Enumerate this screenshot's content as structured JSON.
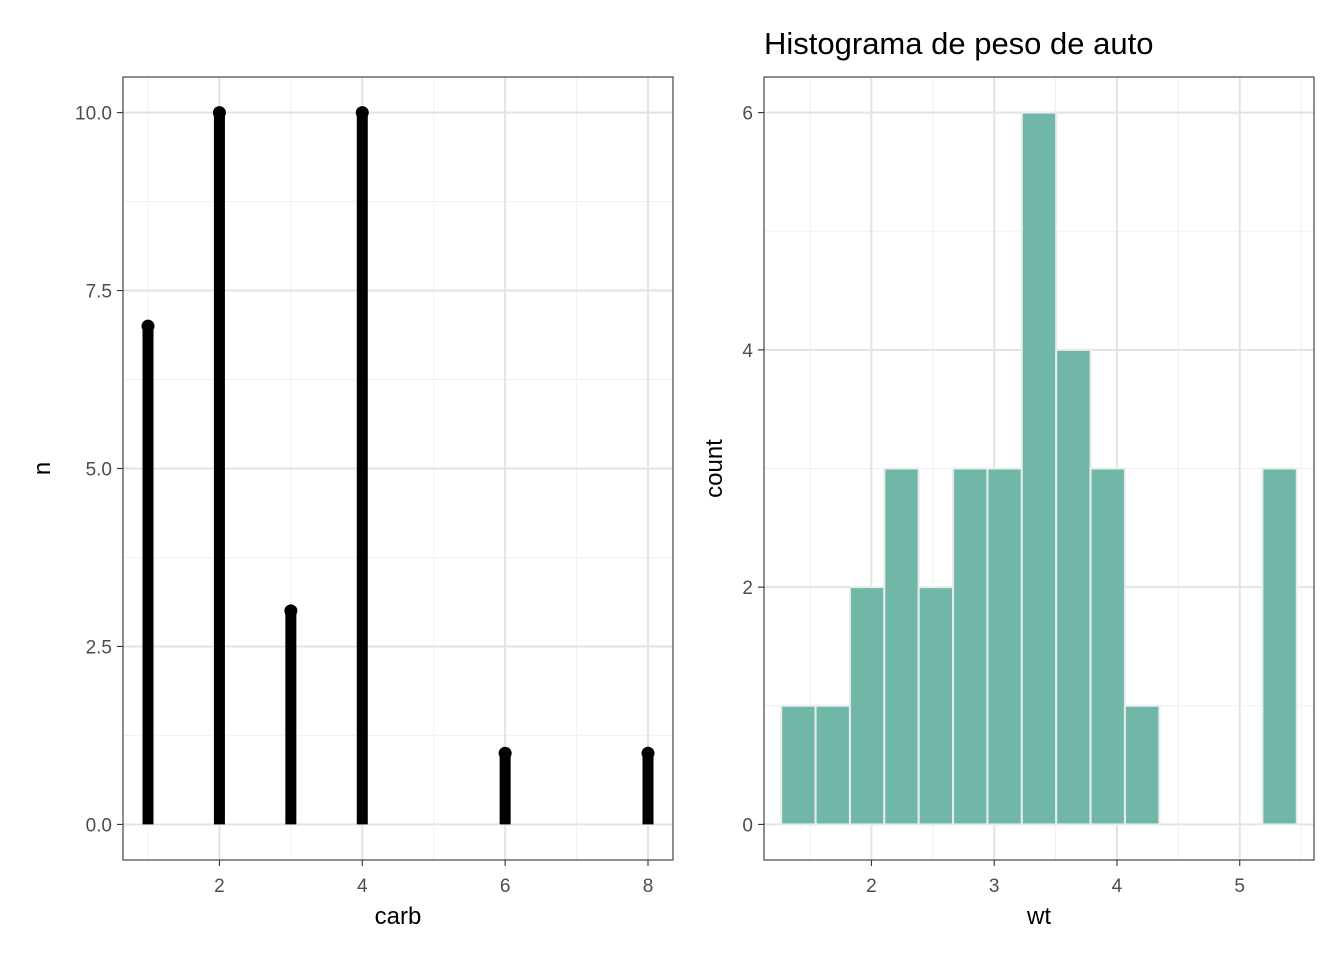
{
  "chart_data": [
    {
      "type": "lollipop",
      "title": "",
      "xlabel": "carb",
      "ylabel": "n",
      "x": [
        1,
        2,
        3,
        4,
        6,
        8
      ],
      "values": [
        7,
        10,
        3,
        10,
        1,
        1
      ],
      "xlim": [
        0.65,
        8.35
      ],
      "ylim": [
        -0.5,
        10.5
      ],
      "x_ticks": [
        2,
        4,
        6,
        8
      ],
      "x_tick_labels": [
        "2",
        "4",
        "6",
        "8"
      ],
      "y_ticks": [
        0,
        2.5,
        5,
        7.5,
        10
      ],
      "y_tick_labels": [
        "0.0",
        "2.5",
        "5.0",
        "7.5",
        "10.0"
      ],
      "grid": true,
      "color": "#000000"
    },
    {
      "type": "bar",
      "subtype": "histogram",
      "title": "Histograma de peso de auto",
      "xlabel": "wt",
      "ylabel": "count",
      "bins": [
        {
          "x0": 1.265,
          "x1": 1.545,
          "count": 1
        },
        {
          "x0": 1.545,
          "x1": 1.825,
          "count": 1
        },
        {
          "x0": 1.825,
          "x1": 2.105,
          "count": 2
        },
        {
          "x0": 2.105,
          "x1": 2.385,
          "count": 3
        },
        {
          "x0": 2.385,
          "x1": 2.665,
          "count": 2
        },
        {
          "x0": 2.665,
          "x1": 2.945,
          "count": 3
        },
        {
          "x0": 2.945,
          "x1": 3.225,
          "count": 3
        },
        {
          "x0": 3.225,
          "x1": 3.505,
          "count": 6
        },
        {
          "x0": 3.505,
          "x1": 3.785,
          "count": 4
        },
        {
          "x0": 3.785,
          "x1": 4.065,
          "count": 3
        },
        {
          "x0": 4.065,
          "x1": 4.345,
          "count": 1
        },
        {
          "x0": 4.345,
          "x1": 4.625,
          "count": 0
        },
        {
          "x0": 4.625,
          "x1": 4.905,
          "count": 0
        },
        {
          "x0": 4.905,
          "x1": 5.185,
          "count": 0
        },
        {
          "x0": 5.185,
          "x1": 5.465,
          "count": 3
        }
      ],
      "xlim": [
        1.125,
        5.605
      ],
      "ylim": [
        -0.3,
        6.3
      ],
      "x_ticks": [
        2,
        3,
        4,
        5
      ],
      "x_tick_labels": [
        "2",
        "3",
        "4",
        "5"
      ],
      "y_ticks": [
        0,
        2,
        4,
        6
      ],
      "y_tick_labels": [
        "0",
        "2",
        "4",
        "6"
      ],
      "grid": true,
      "fill_color": "#69b3a2",
      "bar_outline_color": "#e9ecef"
    }
  ]
}
